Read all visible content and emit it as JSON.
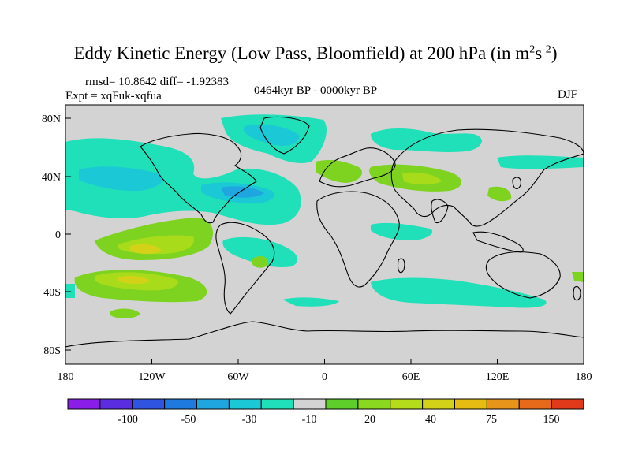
{
  "title": {
    "main": "Eddy Kinetic Energy (Low Pass, Bloomfield) at 200 hPa (in m",
    "sup1": "2",
    "mid": "s",
    "sup2": "-2",
    "end": ")"
  },
  "stats": "rmsd= 10.8642 diff= -1.92383",
  "experiment": "Expt = xqFuk-xqfua",
  "period": "0464kyr BP - 0000kyr BP",
  "season": "DJF",
  "colors": {
    "background": "#d3d3d3",
    "neg_light": "#1fe0b8",
    "neg_mid": "#1ac8d6",
    "neg_dark": "#1fa6e0",
    "pos_light": "#7ed321",
    "pos_mid": "#a8dc1a",
    "pos_dark": "#d4d218"
  },
  "map": {
    "x_ticks": [
      "180",
      "120W",
      "60W",
      "0",
      "60E",
      "120E",
      "180"
    ],
    "y_ticks": [
      "80N",
      "40N",
      "0",
      "40S",
      "80S"
    ]
  },
  "colorbar": {
    "colors": [
      "#8a1ee6",
      "#5a2de0",
      "#2f55e0",
      "#1f7ae0",
      "#1fa6e0",
      "#1ac8d6",
      "#1fe0b8",
      "#d3d3d3",
      "#5ecf2a",
      "#8ad81f",
      "#b4dc1a",
      "#d4d218",
      "#e6bb12",
      "#e6951a",
      "#e66a1a",
      "#e03a1a"
    ],
    "labels": [
      "-100",
      "-50",
      "-30",
      "-10",
      "20",
      "40",
      "75",
      "150"
    ]
  }
}
